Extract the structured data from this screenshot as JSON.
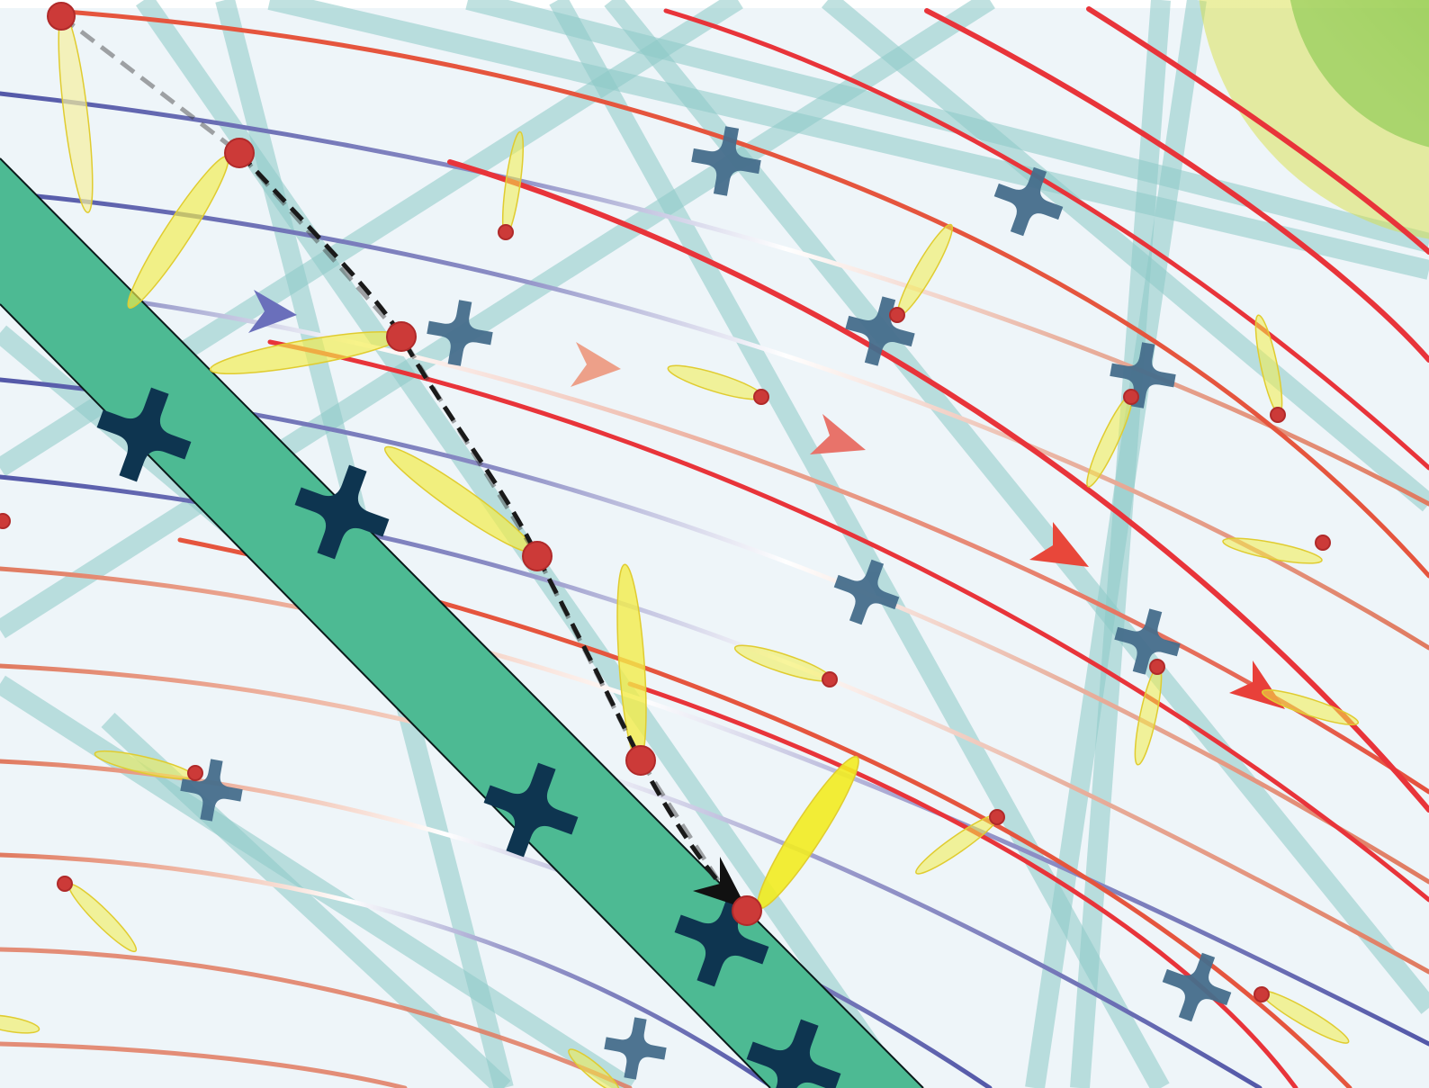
{
  "figure": {
    "background": "#eef5f9",
    "colors": {
      "fiber": "#8cc8c6",
      "fiber_edge": "#6aa3a2",
      "band": "#4dba93",
      "band_edge": "#0a1a1a",
      "node_dark": "#0e3550",
      "node_mid": "#466e8c",
      "blue_line": "#5358a8",
      "salmon_line": "#e07a60",
      "red_line": "#e8343a",
      "petal_yellow": "#f2ec4a",
      "petal_pale": "#f5efa0",
      "dot_red": "#cc3a38",
      "dot_red_edge": "#b02a2a",
      "green_glow": "#7cc243",
      "path_dash": "#1a1a1a"
    },
    "icons": [
      "cross-node-icon",
      "arrowhead-icon",
      "petal-icon",
      "red-dot-icon"
    ]
  }
}
